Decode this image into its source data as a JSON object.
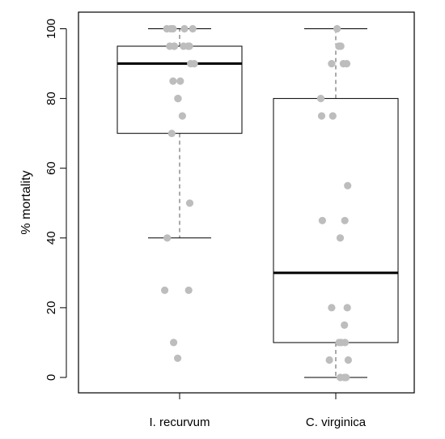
{
  "chart_data": {
    "type": "box",
    "ylabel": "% mortality",
    "xlabel": "",
    "title": "",
    "ylim": [
      0,
      100
    ],
    "y_ticks": [
      0,
      20,
      40,
      60,
      80,
      100
    ],
    "categories": [
      "I. recurvum",
      "C. virginica"
    ],
    "boxes": [
      {
        "category": "I. recurvum",
        "whisker_low": 40,
        "q1": 70,
        "median": 90,
        "q3": 95,
        "whisker_high": 100,
        "points": [
          100,
          100,
          100,
          100,
          100,
          95,
          95,
          95,
          95,
          95,
          95,
          90,
          90,
          85,
          85,
          80,
          80,
          75,
          70,
          50,
          40,
          25,
          25,
          10,
          5.5
        ]
      },
      {
        "category": "C. virginica",
        "whisker_low": 0,
        "q1": 10,
        "median": 30,
        "q3": 80,
        "whisker_high": 100,
        "points": [
          100,
          95,
          95,
          90,
          90,
          90,
          80,
          75,
          75,
          55,
          45,
          45,
          40,
          20,
          20,
          15,
          10,
          10,
          10,
          5,
          5,
          0,
          0,
          0
        ]
      }
    ],
    "colors": {
      "points": "#bdbdbd",
      "box": "#000000",
      "median": "#000000"
    },
    "grid": false,
    "legend": "none"
  }
}
